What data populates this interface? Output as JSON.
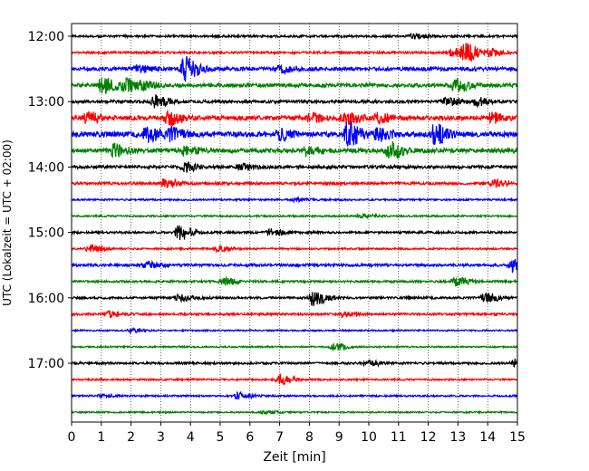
{
  "chart_data": {
    "type": "line",
    "xlabel": "Zeit  [min]",
    "ylabel": "UTC (Lokalzeit = UTC + 02:00)",
    "xlim": [
      0,
      15
    ],
    "x_ticks": [
      0,
      1,
      2,
      3,
      4,
      5,
      6,
      7,
      8,
      9,
      10,
      11,
      12,
      13,
      14,
      15
    ],
    "y_tick_labels": [
      "12:00",
      "13:00",
      "14:00",
      "15:00",
      "16:00",
      "17:00"
    ],
    "y_tick_rows": [
      0,
      4,
      8,
      12,
      16,
      20
    ],
    "grid": "vertical-dotted",
    "trace_colors": [
      "#000000",
      "#ff0000",
      "#0000ff",
      "#008000"
    ],
    "row_minutes": 15,
    "traces": [
      {
        "row": 0,
        "start": "12:00",
        "amplitude": 0.15,
        "events": [
          [
            11.5,
            0.3
          ]
        ]
      },
      {
        "row": 1,
        "start": "12:15",
        "amplitude": 0.15,
        "events": [
          [
            13.2,
            1.3
          ],
          [
            12.8,
            0.6
          ],
          [
            14.0,
            0.5
          ]
        ]
      },
      {
        "row": 2,
        "start": "12:30",
        "amplitude": 0.25,
        "events": [
          [
            3.8,
            1.7
          ],
          [
            2.2,
            0.4
          ],
          [
            7.0,
            0.4
          ]
        ]
      },
      {
        "row": 3,
        "start": "12:45",
        "amplitude": 0.25,
        "events": [
          [
            1.0,
            1.1
          ],
          [
            1.8,
            0.8
          ],
          [
            12.9,
            1.0
          ],
          [
            2.4,
            0.5
          ]
        ]
      },
      {
        "row": 4,
        "start": "13:00",
        "amplitude": 0.2,
        "events": [
          [
            2.8,
            0.8
          ],
          [
            13.6,
            0.5
          ],
          [
            12.6,
            0.5
          ]
        ]
      },
      {
        "row": 5,
        "start": "13:15",
        "amplitude": 0.3,
        "events": [
          [
            0.5,
            0.7
          ],
          [
            3.2,
            0.9
          ],
          [
            9.2,
            0.8
          ],
          [
            10.3,
            0.6
          ],
          [
            14.1,
            0.6
          ],
          [
            8.0,
            0.5
          ]
        ]
      },
      {
        "row": 6,
        "start": "13:30",
        "amplitude": 0.35,
        "events": [
          [
            2.5,
            0.9
          ],
          [
            3.3,
            0.8
          ],
          [
            9.3,
            1.7
          ],
          [
            12.2,
            1.3
          ],
          [
            7.0,
            0.6
          ],
          [
            10.3,
            0.8
          ]
        ]
      },
      {
        "row": 7,
        "start": "13:45",
        "amplitude": 0.3,
        "events": [
          [
            1.4,
            0.8
          ],
          [
            10.7,
            1.1
          ],
          [
            7.9,
            0.6
          ],
          [
            3.8,
            0.5
          ]
        ]
      },
      {
        "row": 8,
        "start": "14:00",
        "amplitude": 0.2,
        "events": [
          [
            3.8,
            0.6
          ],
          [
            5.7,
            0.4
          ]
        ]
      },
      {
        "row": 9,
        "start": "14:15",
        "amplitude": 0.18,
        "events": [
          [
            3.1,
            0.6
          ],
          [
            14.2,
            0.4
          ]
        ]
      },
      {
        "row": 10,
        "start": "14:30",
        "amplitude": 0.12,
        "events": [
          [
            7.5,
            0.2
          ]
        ]
      },
      {
        "row": 11,
        "start": "14:45",
        "amplitude": 0.12,
        "events": [
          [
            9.7,
            0.25
          ]
        ]
      },
      {
        "row": 12,
        "start": "15:00",
        "amplitude": 0.15,
        "events": [
          [
            3.6,
            1.1
          ],
          [
            6.7,
            0.4
          ]
        ]
      },
      {
        "row": 13,
        "start": "15:15",
        "amplitude": 0.12,
        "events": [
          [
            0.6,
            0.5
          ],
          [
            4.9,
            0.3
          ]
        ]
      },
      {
        "row": 14,
        "start": "15:30",
        "amplitude": 0.18,
        "events": [
          [
            14.8,
            0.8
          ],
          [
            2.5,
            0.35
          ]
        ]
      },
      {
        "row": 15,
        "start": "15:45",
        "amplitude": 0.15,
        "events": [
          [
            12.9,
            0.6
          ],
          [
            5.1,
            0.4
          ]
        ]
      },
      {
        "row": 16,
        "start": "16:00",
        "amplitude": 0.15,
        "events": [
          [
            8.1,
            1.1
          ],
          [
            13.9,
            0.6
          ],
          [
            3.6,
            0.4
          ]
        ]
      },
      {
        "row": 17,
        "start": "16:15",
        "amplitude": 0.15,
        "events": [
          [
            1.2,
            0.4
          ],
          [
            9.1,
            0.3
          ]
        ]
      },
      {
        "row": 18,
        "start": "16:30",
        "amplitude": 0.1,
        "events": [
          [
            2.0,
            0.25
          ]
        ]
      },
      {
        "row": 19,
        "start": "16:45",
        "amplitude": 0.1,
        "events": [
          [
            8.8,
            0.45
          ]
        ]
      },
      {
        "row": 20,
        "start": "17:00",
        "amplitude": 0.15,
        "events": [
          [
            14.9,
            0.5
          ],
          [
            9.9,
            0.4
          ]
        ]
      },
      {
        "row": 21,
        "start": "17:15",
        "amplitude": 0.12,
        "events": [
          [
            7.0,
            0.7
          ]
        ]
      },
      {
        "row": 22,
        "start": "17:30",
        "amplitude": 0.12,
        "events": [
          [
            5.6,
            0.45
          ],
          [
            1.0,
            0.2
          ]
        ]
      },
      {
        "row": 23,
        "start": "17:45",
        "amplitude": 0.1,
        "events": [
          [
            6.5,
            0.2
          ]
        ]
      }
    ]
  }
}
